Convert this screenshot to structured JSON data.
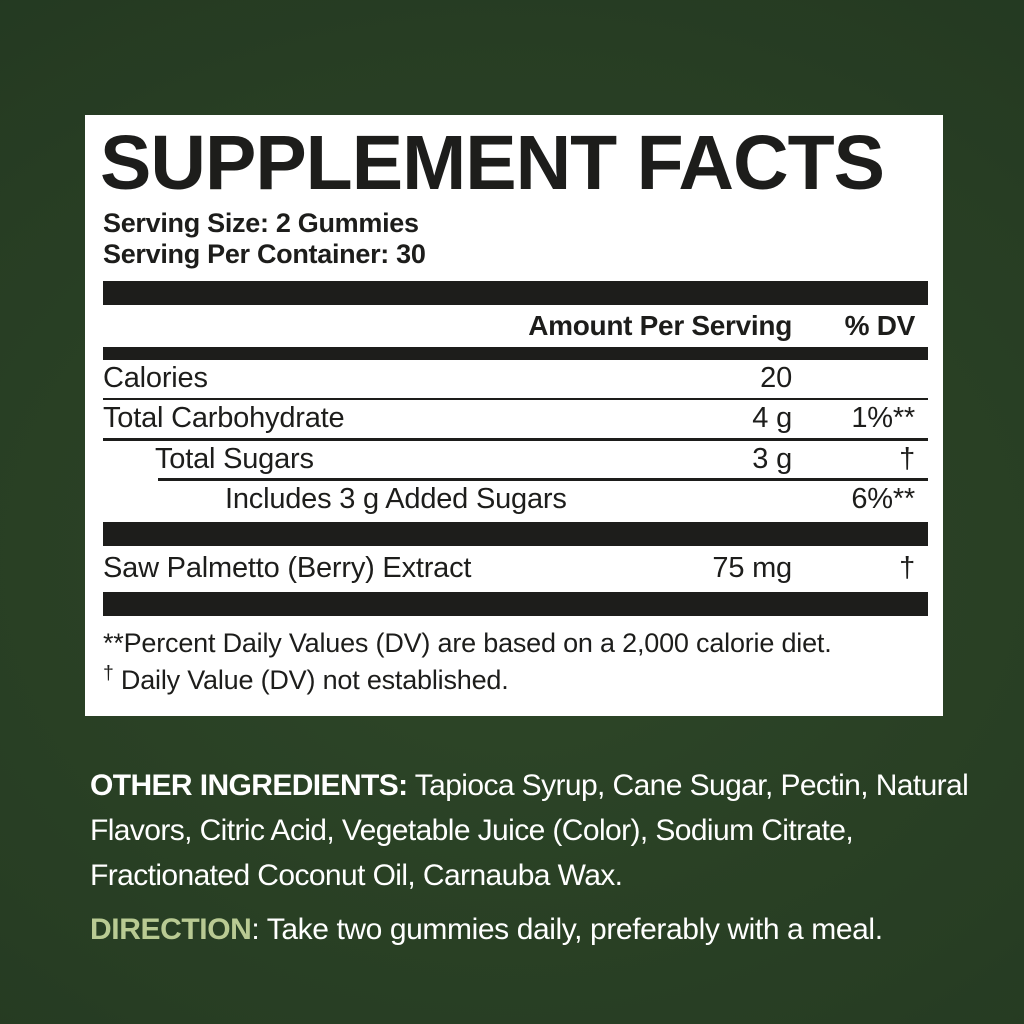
{
  "colors": {
    "background_center": "#2e4728",
    "background_edge": "#1f3320",
    "panel_bg": "#ffffff",
    "text_dark": "#1d1d1b",
    "text_light": "#ffffff",
    "direction_label": "#b9ca93"
  },
  "panel": {
    "title": "SUPPLEMENT FACTS",
    "serving_size": "Serving Size: 2 Gummies",
    "servings_per_container": "Serving Per Container: 30",
    "columns": {
      "amount": "Amount Per Serving",
      "dv": "% DV"
    },
    "rows": [
      {
        "name": "Calories",
        "amount": "20",
        "dv": ""
      },
      {
        "name": "Total Carbohydrate",
        "amount": "4 g",
        "dv": "1%**"
      },
      {
        "name": "Total Sugars",
        "amount": "3 g",
        "dv": "†"
      },
      {
        "name": "Includes 3 g Added Sugars",
        "amount": "",
        "dv": "6%**"
      },
      {
        "name": "Saw Palmetto (Berry) Extract",
        "amount": "75 mg",
        "dv": "†"
      }
    ],
    "footnote_dv": "**Percent Daily Values (DV) are based on a 2,000 calorie diet.",
    "footnote_dagger_marker": "†",
    "footnote_dagger_text": " Daily Value (DV) not established."
  },
  "other_ingredients": {
    "label": "OTHER INGREDIENTS:",
    "text": " Tapioca Syrup, Cane Sugar, Pectin, Natural Flavors, Citric Acid, Vegetable Juice (Color), Sodium Citrate, Fractionated Coconut Oil, Carnauba Wax."
  },
  "direction": {
    "label": "DIRECTION",
    "colon": ": ",
    "text": "Take two gummies daily, preferably with a meal."
  }
}
